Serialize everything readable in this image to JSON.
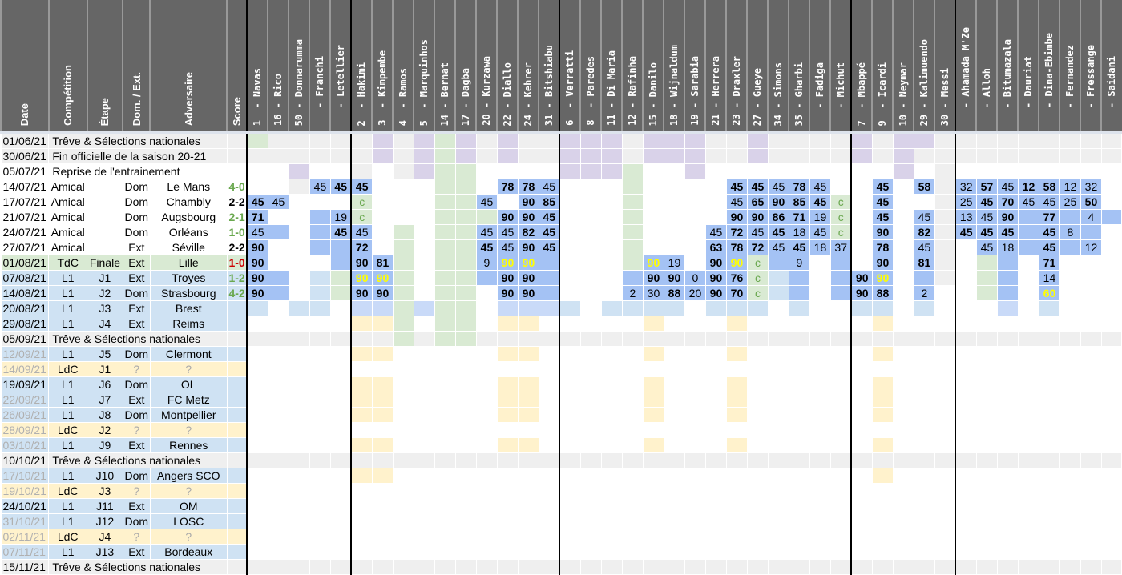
{
  "colors": {
    "B": "#a4c2f4",
    "L": "#cfe2f3",
    "M": "#c9daf8",
    "G": "#d9ead3",
    "P": "#d9d2e9",
    "Y": "#fff2cc",
    "g": "#efefef",
    "w": "#ffffff",
    "L1": "#cfe2f3",
    "LdC": "#fff2cc",
    "TdC": "#d9ead3",
    "win": "#6aa84f",
    "loss": "#cc0000",
    "draw": "#000000"
  },
  "headers": {
    "date": "Date",
    "competition": "Compétition",
    "etape": "Étape",
    "domext": "Dom. / Ext.",
    "adversaire": "Adversaire",
    "score": "Score"
  },
  "players": [
    "1  - Navas",
    "16 - Rico",
    "50 - Donnarumma",
    "   - Franchi",
    "   - Letellier",
    "2  - Hakimi",
    "3  - Kimpembe",
    "4  - Ramos",
    "5  - Marquinhos",
    "14 - Bernat",
    "17 - Dagba",
    "20 - Kurzawa",
    "22 - Diallo",
    "24 - Kehrer",
    "31 - Bitshiabu",
    "6  - Verratti",
    "8  - Paredes",
    "11 - Di Maria",
    "12 - Rafinha",
    "15 - Danilo",
    "18 - Wijnaldum",
    "19 - Sarabia",
    "21 - Herrera",
    "23 - Draxler",
    "27 - Gueye",
    "34 - Simons",
    "35 - Gharbi",
    "   - Fadiga",
    "   - Michut",
    "7  - Mbappé",
    "9  - Icardi",
    "10 - Neymar",
    "29 - Kalimuendo",
    "30 - Messi",
    "   - Ahamada M'Ze",
    "   - Alloh",
    "   - Bitumazala",
    "   - Dauriat",
    "   - Dina-Ebimbe",
    "   - Fernandez",
    "   - Fressange",
    "   - Saidani"
  ],
  "rows": [
    {
      "date": "01/06/21",
      "text": "Trêve & Sélections nationales",
      "kind": "treve",
      "cells": {
        "0": "G",
        "6": "P",
        "8": "P",
        "9": "G",
        "10": "P",
        "12": "P",
        "15": "P",
        "16": "P",
        "17": "P",
        "19": "P",
        "20": "P",
        "21": "P",
        "24": "P",
        "29": "P",
        "31": "P",
        "32": "P"
      }
    },
    {
      "date": "30/06/21",
      "text": "Fin officielle de la saison 20-21",
      "kind": "treve",
      "cells": {
        "6": "P",
        "8": "P",
        "9": "G",
        "10": "P",
        "12": "P",
        "15": "P",
        "16": "P",
        "17": "P",
        "19": "P",
        "20": "P",
        "21": "P",
        "24": "P",
        "29": "P",
        "31": "P"
      }
    },
    {
      "date": "05/07/21",
      "text": "Reprise de l'entrainement",
      "kind": "info",
      "cells": {
        "2": "P",
        "5": "g",
        "7": "g",
        "8": "P",
        "9": "G",
        "10": "G",
        "15": "P",
        "16": "P",
        "17": "P",
        "18": "G",
        "21": "P",
        "31": "P",
        "33": "g"
      }
    },
    {
      "date": "14/07/21",
      "comp": "Amical",
      "etape": "",
      "domext": "Dom",
      "adv": "Le Mans",
      "score": "4-0",
      "res": "win",
      "kind": "amical",
      "cells": {
        "2": "g",
        "3": "B|45|n",
        "4": "B|45|b",
        "5": "B|45|b",
        "9": "G",
        "10": "G",
        "12": "B|78|b",
        "13": "B|78|b",
        "14": "B|45|n",
        "18": "G",
        "23": "B|45|b",
        "24": "B|45|b",
        "25": "B|45|n",
        "26": "B|78|b",
        "27": "B|45|n",
        "30": "B|45|b",
        "32": "B|58|b",
        "33": "g",
        "34": "B|32|n",
        "35": "B|57|b",
        "36": "B|45|n",
        "37": "B|12|b",
        "38": "B|58|b",
        "39": "B|12|n",
        "40": "B|32|n"
      }
    },
    {
      "date": "17/07/21",
      "comp": "Amical",
      "etape": "",
      "domext": "Dom",
      "adv": "Chambly",
      "score": "2-2",
      "res": "draw",
      "kind": "amical",
      "cells": {
        "0": "B|45|b",
        "1": "B|45|n",
        "5": "G|c|c",
        "9": "G",
        "10": "G",
        "11": "B|45|n",
        "13": "B|90|b",
        "14": "B|85|b",
        "18": "G",
        "23": "B|45|n",
        "24": "B|65|b",
        "25": "B|90|b",
        "26": "B|85|b",
        "27": "B|45|b",
        "28": "G|c|c",
        "30": "B|45|b",
        "33": "g",
        "34": "B|25|n",
        "35": "B|45|b",
        "36": "B|70|b",
        "37": "B|45|n",
        "38": "B|45|n",
        "39": "B|25|n",
        "40": "B|50|b"
      }
    },
    {
      "date": "21/07/21",
      "comp": "Amical",
      "etape": "",
      "domext": "Dom",
      "adv": "Augsbourg",
      "score": "2-1",
      "res": "win",
      "kind": "amical",
      "cells": {
        "0": "B|71|b",
        "3": "B",
        "4": "B|19|n",
        "5": "G|c|c",
        "9": "G",
        "10": "G",
        "11": "G",
        "12": "B|90|b",
        "13": "B|90|b",
        "14": "B|45|b",
        "18": "G",
        "23": "B|90|b",
        "24": "B|90|b",
        "25": "B|86|b",
        "26": "B|71|b",
        "27": "B|19|n",
        "28": "G|c|c",
        "30": "B|45|b",
        "32": "B|45|n",
        "33": "g",
        "34": "B|13|n",
        "35": "B|45|n",
        "36": "B|90|b",
        "37": "B",
        "38": "B|77|b",
        "39": "B",
        "40": "B|4|n",
        "41": "B"
      }
    },
    {
      "date": "24/07/21",
      "comp": "Amical",
      "etape": "",
      "domext": "Dom",
      "adv": "Orléans",
      "score": "1-0",
      "res": "win",
      "kind": "amical",
      "cells": {
        "0": "B|45|n",
        "1": "B",
        "3": "B",
        "4": "B|45|b",
        "5": "B|45|n",
        "7": "G",
        "9": "G",
        "10": "G",
        "11": "B|45|n",
        "12": "B|45|n",
        "13": "B|82|b",
        "14": "B|45|b",
        "18": "G",
        "22": "B|45|n",
        "23": "B|72|b",
        "24": "B|45|n",
        "25": "B|45|b",
        "26": "B|18|n",
        "27": "B|45|n",
        "28": "G|c|c",
        "30": "B|90|b",
        "32": "B|82|b",
        "33": "g",
        "34": "B|45|b",
        "35": "B|45|b",
        "36": "B|45|b",
        "37": "B",
        "38": "B|45|b",
        "39": "B|8|n",
        "40": "B"
      }
    },
    {
      "date": "27/07/21",
      "comp": "Amical",
      "etape": "",
      "domext": "Ext",
      "adv": "Séville",
      "score": "2-2",
      "res": "draw",
      "kind": "amical",
      "cells": {
        "0": "B|90|b",
        "3": "B",
        "4": "B",
        "5": "B|72|b",
        "7": "G",
        "9": "G",
        "10": "G",
        "11": "B|45|b",
        "12": "B|45|n",
        "13": "B|90|b",
        "14": "B|45|b",
        "18": "G",
        "22": "B|63|b",
        "23": "B|78|b",
        "24": "B|72|b",
        "25": "B|45|n",
        "26": "B|45|b",
        "27": "B|18|n",
        "28": "B|37|n",
        "30": "B|78|b",
        "32": "B|45|n",
        "33": "g",
        "35": "B|45|n",
        "36": "B|18|n",
        "37": "B",
        "38": "B|45|b",
        "39": "B",
        "40": "B|12|n"
      }
    },
    {
      "date": "01/08/21",
      "comp": "TdC",
      "etape": "Finale",
      "domext": "Ext",
      "adv": "Lille",
      "score": "1-0",
      "res": "loss",
      "kind": "TdC",
      "cells": {
        "0": "B|90|b",
        "4": "B",
        "5": "B|90|b",
        "6": "B|81|b",
        "7": "G",
        "9": "G",
        "10": "G",
        "11": "B|9|n",
        "12": "B|90|y",
        "13": "B|90|y",
        "14": "B",
        "18": "G",
        "19": "B|90|y",
        "20": "B|19|n",
        "22": "B|90|b",
        "23": "B|90|y",
        "24": "G|c|c",
        "25": "B",
        "26": "B|9|n",
        "28": "B",
        "30": "B|90|b",
        "32": "B|81|b",
        "33": "g",
        "35": "G",
        "36": "B",
        "38": "B|71|b"
      }
    },
    {
      "date": "07/08/21",
      "comp": "L1",
      "etape": "J1",
      "domext": "Ext",
      "adv": "Troyes",
      "score": "1-2",
      "res": "win",
      "kind": "L1",
      "cells": {
        "0": "B|90|b",
        "1": "B",
        "3": "L",
        "4": "G",
        "5": "B|90|y",
        "6": "B|90|y",
        "7": "G",
        "9": "G",
        "10": "G",
        "11": "B",
        "12": "B|90|b",
        "13": "B|90|b",
        "14": "B",
        "18": "B",
        "19": "B|90|b",
        "20": "B|90|b",
        "21": "B|0|n",
        "22": "B|90|b",
        "23": "B|76|b",
        "24": "G|c|c",
        "25": "L",
        "26": "B",
        "28": "B",
        "29": "B|90|b",
        "30": "B|90|y",
        "32": "B",
        "33": "g",
        "35": "G",
        "36": "B",
        "38": "B|14|n"
      }
    },
    {
      "date": "14/08/21",
      "comp": "L1",
      "etape": "J2",
      "domext": "Dom",
      "adv": "Strasbourg",
      "score": "4-2",
      "res": "win",
      "kind": "L1",
      "cells": {
        "0": "B|90|b",
        "1": "B",
        "3": "L",
        "4": "G",
        "5": "B|90|b",
        "6": "B|90|b",
        "7": "G",
        "9": "G",
        "10": "G",
        "12": "B|90|b",
        "13": "B|90|b",
        "14": "B",
        "18": "B|2|n",
        "19": "B|30|n",
        "20": "B|88|b",
        "21": "B|20|n",
        "22": "B|90|b",
        "23": "B|70|b",
        "24": "G|c|c",
        "25": "L",
        "26": "B",
        "28": "B",
        "29": "B|90|b",
        "30": "B|88|b",
        "32": "B|2|n",
        "35": "G",
        "36": "B",
        "38": "B|60|y"
      }
    },
    {
      "date": "20/08/21",
      "comp": "L1",
      "etape": "J3",
      "domext": "Ext",
      "adv": "Brest",
      "score": "",
      "kind": "L1",
      "cells": {
        "0": "L",
        "2": "L",
        "3": "L",
        "5": "M",
        "6": "M",
        "7": "G",
        "8": "M",
        "9": "G",
        "10": "G",
        "12": "M",
        "13": "M",
        "14": "M",
        "15": "L",
        "17": "L",
        "18": "L",
        "19": "L",
        "20": "L",
        "22": "L",
        "23": "L",
        "24": "L",
        "26": "L",
        "29": "L",
        "30": "L",
        "32": "L",
        "36": "M",
        "38": "L"
      }
    },
    {
      "date": "29/08/21",
      "comp": "L1",
      "etape": "J4",
      "domext": "Ext",
      "adv": "Reims",
      "score": "",
      "kind": "L1",
      "cells": {
        "5": "Y",
        "6": "Y",
        "7": "G",
        "9": "G",
        "10": "G",
        "12": "Y",
        "13": "Y",
        "19": "Y",
        "23": "Y",
        "30": "Y"
      }
    },
    {
      "date": "05/09/21",
      "text": "Trêve & Sélections nationales",
      "kind": "treve",
      "cells": {
        "7": "G",
        "9": "G",
        "10": "G"
      }
    },
    {
      "date": "12/09/21",
      "muted": true,
      "comp": "L1",
      "etape": "J5",
      "domext": "Dom",
      "adv": "Clermont",
      "score": "",
      "kind": "L1",
      "cells": {
        "5": "Y",
        "6": "Y",
        "12": "Y",
        "13": "Y",
        "19": "Y",
        "23": "Y",
        "30": "Y"
      }
    },
    {
      "date": "14/09/21",
      "muted": true,
      "comp": "LdC",
      "etape": "J1",
      "domext": "?",
      "adv": "?",
      "score": "",
      "kind": "LdC",
      "cells": {}
    },
    {
      "date": "19/09/21",
      "comp": "L1",
      "etape": "J6",
      "domext": "Dom",
      "adv": "OL",
      "score": "",
      "kind": "L1",
      "cells": {
        "5": "Y",
        "6": "Y",
        "12": "Y",
        "13": "Y",
        "19": "Y",
        "23": "Y",
        "30": "Y"
      }
    },
    {
      "date": "22/09/21",
      "muted": true,
      "comp": "L1",
      "etape": "J7",
      "domext": "Ext",
      "adv": "FC Metz",
      "score": "",
      "kind": "L1",
      "cells": {
        "5": "Y",
        "6": "Y",
        "12": "Y",
        "13": "Y",
        "19": "Y",
        "23": "Y",
        "30": "Y"
      }
    },
    {
      "date": "26/09/21",
      "muted": true,
      "comp": "L1",
      "etape": "J8",
      "domext": "Dom",
      "adv": "Montpellier",
      "score": "",
      "kind": "L1",
      "cells": {
        "5": "Y",
        "6": "Y",
        "12": "Y",
        "13": "Y",
        "19": "Y",
        "23": "Y",
        "30": "Y"
      }
    },
    {
      "date": "28/09/21",
      "muted": true,
      "comp": "LdC",
      "etape": "J2",
      "domext": "?",
      "adv": "?",
      "score": "",
      "kind": "LdC",
      "cells": {}
    },
    {
      "date": "03/10/21",
      "muted": true,
      "comp": "L1",
      "etape": "J9",
      "domext": "Ext",
      "adv": "Rennes",
      "score": "",
      "kind": "L1",
      "cells": {
        "5": "Y",
        "6": "Y",
        "12": "Y",
        "13": "Y",
        "19": "Y",
        "23": "Y",
        "30": "Y"
      }
    },
    {
      "date": "10/10/21",
      "text": "Trêve & Sélections nationales",
      "kind": "treve",
      "cells": {}
    },
    {
      "date": "17/10/21",
      "muted": true,
      "comp": "L1",
      "etape": "J10",
      "domext": "Dom",
      "adv": "Angers SCO",
      "score": "",
      "kind": "L1",
      "cells": {
        "5": "Y",
        "6": "Y",
        "30": "Y"
      }
    },
    {
      "date": "19/10/21",
      "muted": true,
      "comp": "LdC",
      "etape": "J3",
      "domext": "?",
      "adv": "?",
      "score": "",
      "kind": "LdC",
      "cells": {}
    },
    {
      "date": "24/10/21",
      "comp": "L1",
      "etape": "J11",
      "domext": "Ext",
      "adv": "OM",
      "score": "",
      "kind": "L1",
      "cells": {}
    },
    {
      "date": "31/10/21",
      "muted": true,
      "comp": "L1",
      "etape": "J12",
      "domext": "Dom",
      "adv": "LOSC",
      "score": "",
      "kind": "L1",
      "cells": {}
    },
    {
      "date": "02/11/21",
      "muted": true,
      "comp": "LdC",
      "etape": "J4",
      "domext": "?",
      "adv": "?",
      "score": "",
      "kind": "LdC",
      "cells": {}
    },
    {
      "date": "07/11/21",
      "muted": true,
      "comp": "L1",
      "etape": "J13",
      "domext": "Ext",
      "adv": "Bordeaux",
      "score": "",
      "kind": "L1",
      "cells": {}
    },
    {
      "date": "15/11/21",
      "text": "Trêve & Sélections nationales",
      "kind": "treve",
      "cells": {}
    }
  ]
}
